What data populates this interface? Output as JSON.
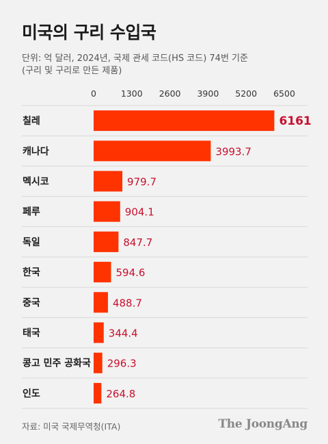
{
  "header": {
    "title": "미국의 구리 수입국",
    "subtitle": "단위: 억 달러, 2024년, 국제 관세 코드(HS 코드) 74번 기준\n(구리 및 구리로 만든 제품)"
  },
  "footer": {
    "source": "자료: 미국 국제무역청(ITA)",
    "brand": "The JoongAng"
  },
  "colors": {
    "bar": "#ff3300",
    "value_text": "#c8102e",
    "background": "#f2f2f2",
    "divider": "#d8d8d8"
  },
  "chart_data": {
    "type": "bar",
    "orientation": "horizontal",
    "categories": [
      "칠레",
      "캐나다",
      "멕시코",
      "페루",
      "독일",
      "한국",
      "중국",
      "태국",
      "콩고 민주 공화국",
      "인도"
    ],
    "values": [
      6161,
      3993.7,
      979.7,
      904.1,
      847.7,
      594.6,
      488.7,
      344.4,
      296.3,
      264.8
    ],
    "value_labels": [
      "6161",
      "3993.7",
      "979.7",
      "904.1",
      "847.7",
      "594.6",
      "488.7",
      "344.4",
      "296.3",
      "264.8"
    ],
    "xticks": [
      0,
      1300,
      2600,
      3900,
      5200,
      6500
    ],
    "xlim": [
      0,
      6500
    ],
    "title": "미국의 구리 수입국",
    "xlabel": "",
    "ylabel": "",
    "grid": false,
    "legend": "none"
  }
}
